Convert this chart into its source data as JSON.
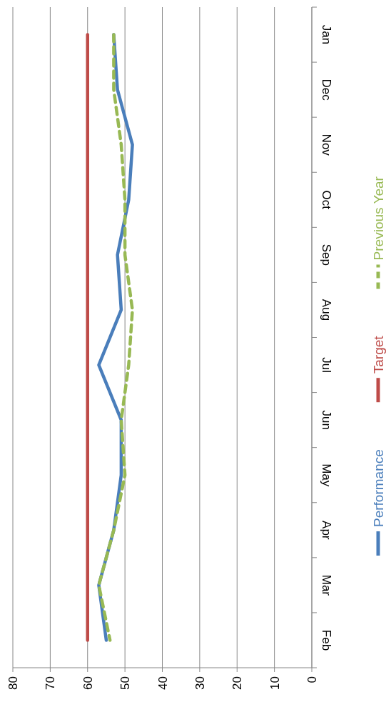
{
  "chart_data": {
    "type": "line",
    "orientation": "horizontal",
    "categories": [
      "Jan",
      "Dec",
      "Nov",
      "Oct",
      "Sep",
      "Aug",
      "Jul",
      "Jun",
      "May",
      "Apr",
      "Mar",
      "Feb"
    ],
    "series": [
      {
        "name": "Performance",
        "color": "#4a7ebb",
        "values": [
          53,
          52,
          48,
          49,
          52,
          51,
          57,
          51,
          51,
          53,
          57,
          55
        ]
      },
      {
        "name": "Target",
        "color": "#be4b48",
        "values": [
          60,
          60,
          60,
          60,
          60,
          60,
          60,
          60,
          60,
          60,
          60,
          60
        ]
      },
      {
        "name": "Previous Year",
        "color": "#98b954",
        "line_style": "dashed",
        "values": [
          53,
          53,
          51,
          50,
          50,
          48,
          49,
          51,
          50,
          53,
          57,
          54
        ]
      }
    ],
    "xlim": [
      80,
      0
    ],
    "xticks": [
      80,
      70,
      60,
      50,
      40,
      30,
      20,
      10,
      0
    ],
    "grid": "x",
    "legend": "right",
    "marker": "none"
  }
}
